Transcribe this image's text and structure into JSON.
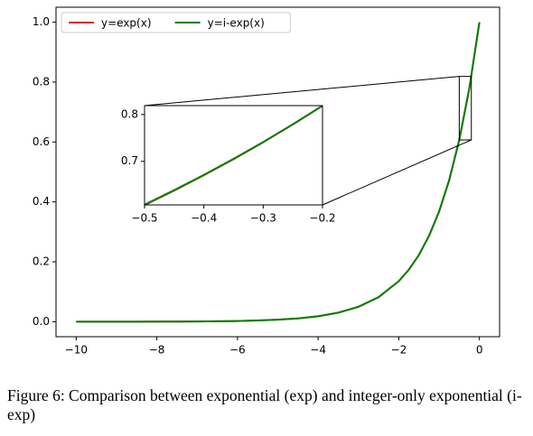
{
  "chart_data": [
    {
      "type": "line",
      "x": [
        -10,
        -9.5,
        -9,
        -8.5,
        -8,
        -7.5,
        -7,
        -6.5,
        -6,
        -5.5,
        -5,
        -4.5,
        -4,
        -3.5,
        -3,
        -2.5,
        -2,
        -1.75,
        -1.5,
        -1.25,
        -1,
        -0.75,
        -0.5,
        -0.25,
        0
      ],
      "series": [
        {
          "name": "y=exp(x)",
          "color": "#d62728",
          "values": [
            4.54e-05,
            7.49e-05,
            0.000123,
            0.000203,
            0.000335,
            0.000553,
            0.000912,
            0.0015,
            0.00248,
            0.00409,
            0.00674,
            0.0111,
            0.0183,
            0.0302,
            0.0498,
            0.0821,
            0.1353,
            0.1738,
            0.2231,
            0.2865,
            0.3679,
            0.4724,
            0.6065,
            0.7788,
            1.0
          ]
        },
        {
          "name": "y=i-exp(x)",
          "color": "#008000",
          "values": [
            4.54e-05,
            7.49e-05,
            0.000123,
            0.000203,
            0.000335,
            0.000553,
            0.000912,
            0.0015,
            0.00248,
            0.00409,
            0.00674,
            0.0111,
            0.0183,
            0.0302,
            0.0498,
            0.0821,
            0.1353,
            0.1738,
            0.2231,
            0.2865,
            0.3679,
            0.4724,
            0.6065,
            0.7788,
            1.0
          ]
        }
      ],
      "xlim": [
        -10.5,
        0.5
      ],
      "ylim": [
        -0.05,
        1.05
      ],
      "xticks": [
        {
          "value": -10,
          "label": "−10"
        },
        {
          "value": -8,
          "label": "−8"
        },
        {
          "value": -6,
          "label": "−6"
        },
        {
          "value": -4,
          "label": "−4"
        },
        {
          "value": -2,
          "label": "−2"
        },
        0
      ],
      "yticks": [
        {
          "value": 0,
          "label": "0.0"
        },
        0.2,
        0.4,
        0.6,
        0.8,
        {
          "value": 1,
          "label": "1.0"
        }
      ],
      "legend": "upper left"
    },
    {
      "type": "line",
      "x": [
        -0.5,
        -0.45,
        -0.4,
        -0.35,
        -0.3,
        -0.25,
        -0.2
      ],
      "series": [
        {
          "color": "#d62728",
          "values": [
            0.6065,
            0.6376,
            0.6703,
            0.7047,
            0.7408,
            0.7788,
            0.8187
          ]
        },
        {
          "color": "#008000",
          "values": [
            0.6075,
            0.6384,
            0.671,
            0.7053,
            0.7413,
            0.7791,
            0.8187
          ]
        }
      ],
      "xlim": [
        -0.5,
        -0.2
      ],
      "ylim": [
        0.607,
        0.819
      ],
      "xticks": [
        {
          "value": -0.5,
          "label": "−0.5"
        },
        {
          "value": -0.4,
          "label": "−0.4"
        },
        {
          "value": -0.3,
          "label": "−0.3"
        },
        {
          "value": -0.2,
          "label": "−0.2"
        }
      ],
      "yticks": [
        0.7,
        0.8
      ]
    }
  ],
  "caption": "Figure 6: Comparison between exponential (exp) and integer-only exponential (i-exp)"
}
